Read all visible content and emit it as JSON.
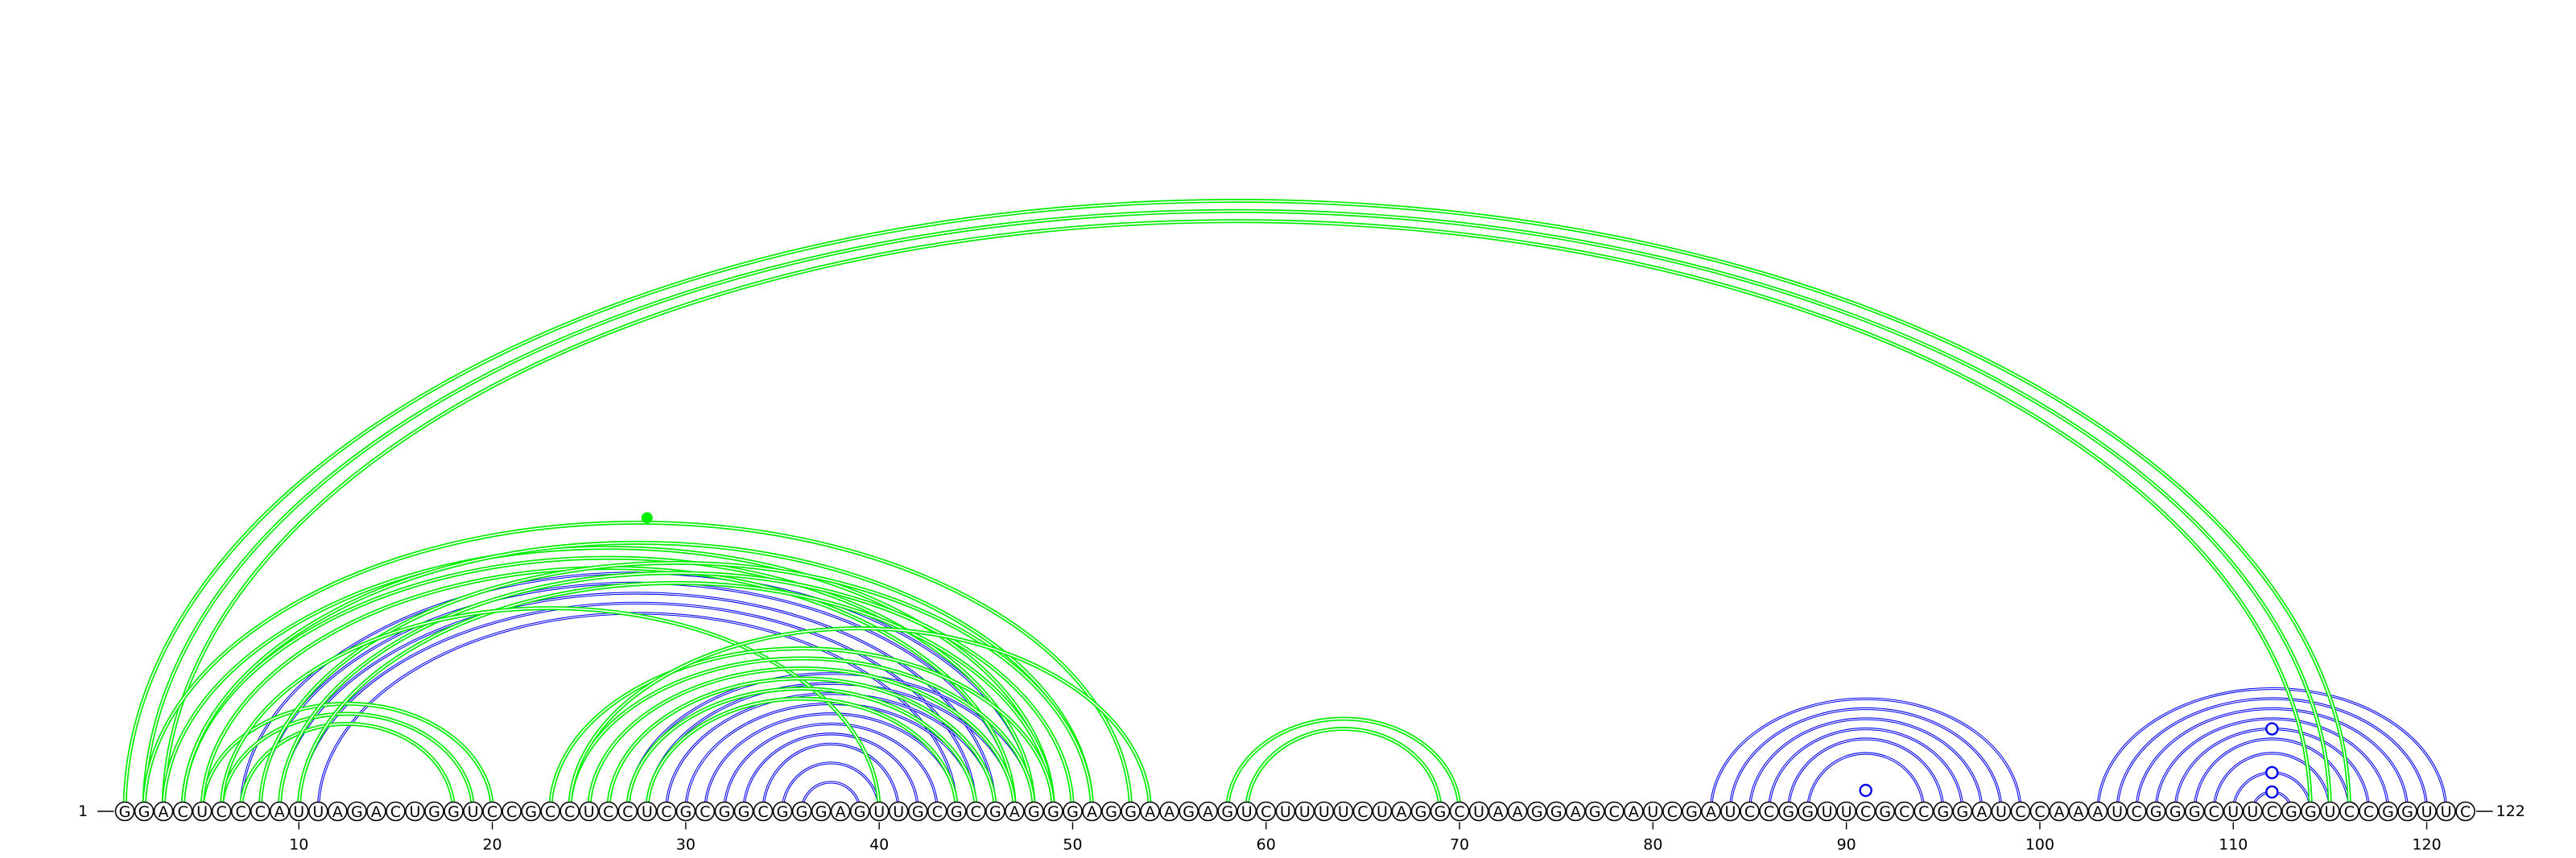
{
  "sequence": "GGACUCCCAUUAGACUGGUCCGCCUCCUCGCGGCGGGAGUUGCGCGAGGGAGGAAGAGUCUUUUCUAGGCUAAGGAGCAUCGAUCCGGUUCGCCGGAUCCAAAUCGGGCUUCGGUCCGGUUC",
  "labels": {
    "start": "1",
    "end": "122"
  },
  "ticks": [
    "10",
    "20",
    "30",
    "40",
    "50",
    "60",
    "70",
    "80",
    "90",
    "100",
    "110",
    "120"
  ],
  "colors": {
    "upper_arcs": "#00ee00",
    "lower_arcs": "#0000ee"
  },
  "green_helices": [
    {
      "i": 1,
      "j": 116,
      "n": 3
    },
    {
      "i": 5,
      "j": 20,
      "n": 3
    },
    {
      "i": 3,
      "j": 49,
      "n": 3
    },
    {
      "i": 4,
      "j": 51,
      "n": 1
    },
    {
      "i": 2,
      "j": 53,
      "n": 1
    },
    {
      "i": 8,
      "j": 51,
      "n": 3
    },
    {
      "i": 6,
      "j": 40,
      "n": 1
    },
    {
      "i": 23,
      "j": 49,
      "n": 6
    },
    {
      "i": 24,
      "j": 54,
      "n": 1
    },
    {
      "i": 58,
      "j": 70,
      "n": 2
    }
  ],
  "blue_helices": [
    {
      "i": 7,
      "j": 48,
      "n": 5
    },
    {
      "i": 27,
      "j": 48,
      "n": 10
    },
    {
      "i": 83,
      "j": 99,
      "n": 6
    },
    {
      "i": 103,
      "j": 121,
      "n": 10
    }
  ],
  "markers": [
    {
      "kind": "filled-dot",
      "i": 28
    },
    {
      "kind": "open-dot",
      "i": 91,
      "j": 91
    },
    {
      "kind": "open-dot",
      "i": 111,
      "j": 113
    },
    {
      "kind": "open-dot",
      "i": 110,
      "j": 114
    },
    {
      "kind": "open-dot",
      "i": 107,
      "j": 117
    }
  ]
}
